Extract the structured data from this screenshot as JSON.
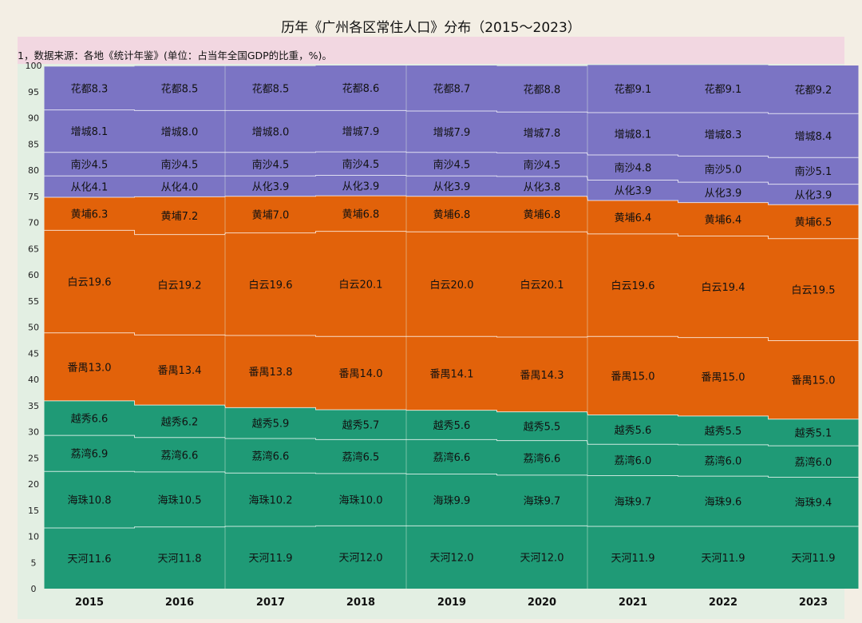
{
  "title": "历年《广州各区常住人口》分布（2015～2023）",
  "note": "1，数据来源：各地《统计年鉴》(单位：占当年全国GDP的比重，%)。",
  "chart_data": {
    "type": "bar",
    "stacked": true,
    "title": "历年《广州各区常住人口》分布（2015～2023）",
    "xlabel": "",
    "ylabel": "",
    "ylim": [
      0,
      100
    ],
    "yticks": [
      0,
      5,
      10,
      15,
      20,
      25,
      30,
      35,
      40,
      45,
      50,
      55,
      60,
      65,
      70,
      75,
      80,
      85,
      90,
      95,
      100
    ],
    "categories": [
      "2015",
      "2016",
      "2017",
      "2018",
      "2019",
      "2020",
      "2021",
      "2022",
      "2023"
    ],
    "colors": {
      "green": "#1f9a76",
      "orange": "#e2620a",
      "purple": "#7b74c4"
    },
    "series": [
      {
        "name": "天河",
        "group": "green",
        "values": [
          11.6,
          11.8,
          11.9,
          12.0,
          12.0,
          12.0,
          11.9,
          11.9,
          11.9
        ]
      },
      {
        "name": "海珠",
        "group": "green",
        "values": [
          10.8,
          10.5,
          10.2,
          10.0,
          9.9,
          9.7,
          9.7,
          9.6,
          9.4
        ]
      },
      {
        "name": "荔湾",
        "group": "green",
        "values": [
          6.9,
          6.6,
          6.6,
          6.5,
          6.6,
          6.6,
          6.0,
          6.0,
          6.0
        ]
      },
      {
        "name": "越秀",
        "group": "green",
        "values": [
          6.6,
          6.2,
          5.9,
          5.7,
          5.6,
          5.5,
          5.6,
          5.5,
          5.1
        ]
      },
      {
        "name": "番禺",
        "group": "orange",
        "values": [
          13.0,
          13.4,
          13.8,
          14.0,
          14.1,
          14.3,
          15.0,
          15.0,
          15.0
        ]
      },
      {
        "name": "白云",
        "group": "orange",
        "values": [
          19.6,
          19.2,
          19.6,
          20.1,
          20.0,
          20.1,
          19.6,
          19.4,
          19.5
        ]
      },
      {
        "name": "黄埔",
        "group": "orange",
        "values": [
          6.3,
          7.2,
          7.0,
          6.8,
          6.8,
          6.8,
          6.4,
          6.4,
          6.5
        ]
      },
      {
        "name": "从化",
        "group": "purple",
        "values": [
          4.1,
          4.0,
          3.9,
          3.9,
          3.9,
          3.8,
          3.9,
          3.9,
          3.9
        ]
      },
      {
        "name": "南沙",
        "group": "purple",
        "values": [
          4.5,
          4.5,
          4.5,
          4.5,
          4.5,
          4.5,
          4.8,
          5.0,
          5.1
        ]
      },
      {
        "name": "增城",
        "group": "purple",
        "values": [
          8.1,
          8.0,
          8.0,
          7.9,
          7.9,
          7.8,
          8.1,
          8.3,
          8.4
        ]
      },
      {
        "name": "花都",
        "group": "purple",
        "values": [
          8.3,
          8.5,
          8.5,
          8.6,
          8.7,
          8.8,
          9.1,
          9.1,
          9.2
        ]
      }
    ]
  }
}
